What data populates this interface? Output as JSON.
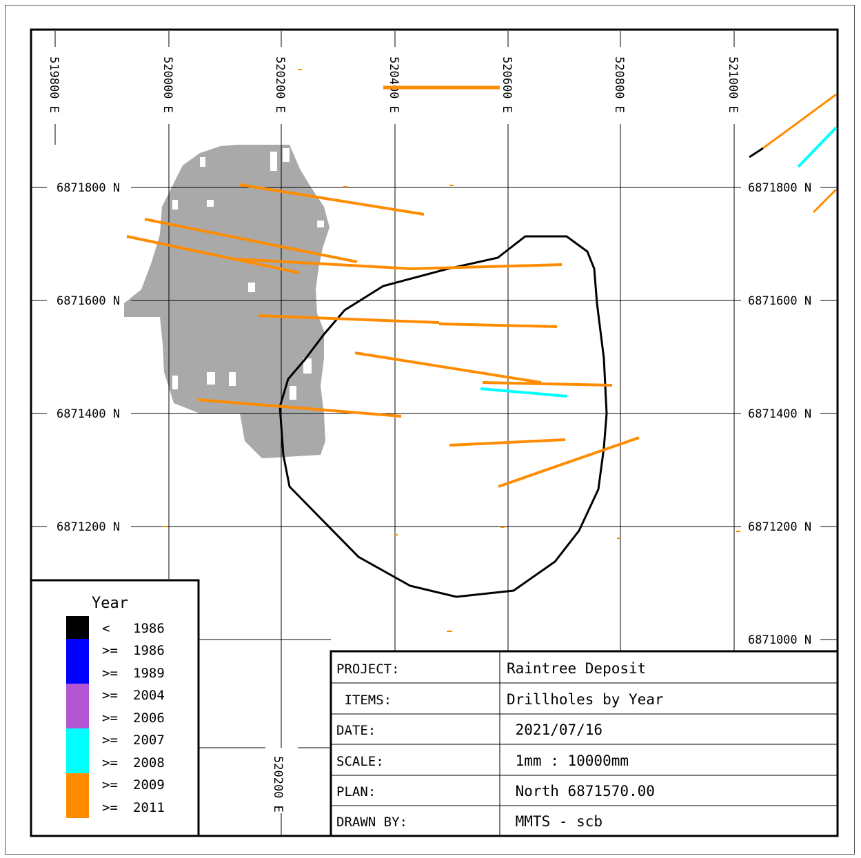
{
  "map": {
    "easting_labels": [
      "519800 E",
      "520000 E",
      "520200 E",
      "520400 E",
      "520600 E",
      "520800 E",
      "521000 E"
    ],
    "northing_labels": [
      "6871800 N",
      "6871600 N",
      "6871400 N",
      "6871200 N",
      "6871000 N"
    ],
    "bottom_easting_label": "520200 E",
    "colors": {
      "pit_outline": "#000000",
      "geology_fill": "#a9a9a9",
      "year_lt_1986": "#000000",
      "year_ge_1986": "#0000ff",
      "year_ge_1989": "#0000ff",
      "year_ge_2004": "#b455d3",
      "year_ge_2006": "#b455d3",
      "year_ge_2007": "#00ffff",
      "year_ge_2008": "#00ffff",
      "year_ge_2009": "#ff8c00",
      "year_ge_2011": "#ff8c00"
    }
  },
  "legend": {
    "title": "Year",
    "items": [
      {
        "op": "<",
        "year": "1986"
      },
      {
        "op": ">=",
        "year": "1986"
      },
      {
        "op": ">=",
        "year": "1989"
      },
      {
        "op": ">=",
        "year": "2004"
      },
      {
        "op": ">=",
        "year": "2006"
      },
      {
        "op": ">=",
        "year": "2007"
      },
      {
        "op": ">=",
        "year": "2008"
      },
      {
        "op": ">=",
        "year": "2009"
      },
      {
        "op": ">=",
        "year": "2011"
      }
    ]
  },
  "title_block": {
    "rows": [
      {
        "label": "PROJECT:",
        "value": "Raintree Deposit"
      },
      {
        "label": " ITEMS:",
        "value": "Drillholes by Year"
      },
      {
        "label": "DATE:",
        "value": " 2021/07/16"
      },
      {
        "label": "SCALE:",
        "value": " 1mm : 10000mm"
      },
      {
        "label": "PLAN:",
        "value": " North 6871570.00"
      },
      {
        "label": "DRAWN BY:",
        "value": " MMTS - scb"
      }
    ]
  }
}
